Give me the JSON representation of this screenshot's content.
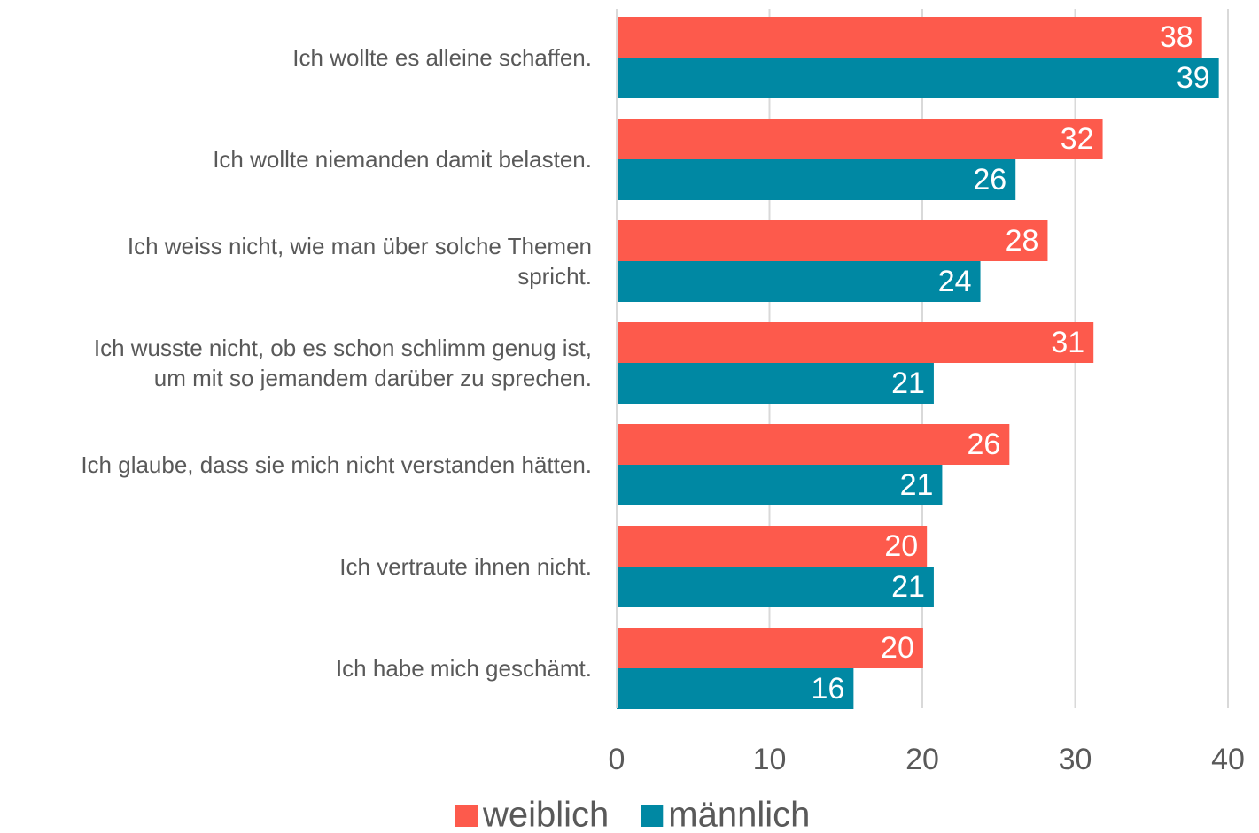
{
  "chart_data": {
    "type": "bar",
    "orientation": "horizontal",
    "categories": [
      "Ich wollte es alleine schaffen.",
      "Ich wollte niemanden damit belasten.",
      "Ich weiss nicht, wie man über solche Themen\nspricht.",
      "Ich wusste nicht, ob es schon schlimm genug ist,\num mit so jemandem darüber zu sprechen.",
      "Ich glaube, dass sie mich nicht verstanden hätten.",
      "Ich vertraute ihnen nicht.",
      "Ich habe mich geschämt."
    ],
    "series": [
      {
        "name": "weiblich",
        "color": "#fd5a4c",
        "values": [
          38.3,
          31.8,
          28.2,
          31.2,
          25.7,
          20.3,
          20.05
        ],
        "value_labels": [
          "38",
          "32",
          "28",
          "31",
          "26",
          "20",
          "20"
        ]
      },
      {
        "name": "männlich",
        "color": "#0088a3",
        "values": [
          39.4,
          26.1,
          23.8,
          20.75,
          21.3,
          20.75,
          15.5
        ],
        "value_labels": [
          "39",
          "26",
          "24",
          "21",
          "21",
          "21",
          "16"
        ]
      }
    ],
    "xlim": [
      0,
      40
    ],
    "xticks": [
      0,
      10,
      20,
      30,
      40
    ],
    "grid": true,
    "legend": "bottom"
  }
}
